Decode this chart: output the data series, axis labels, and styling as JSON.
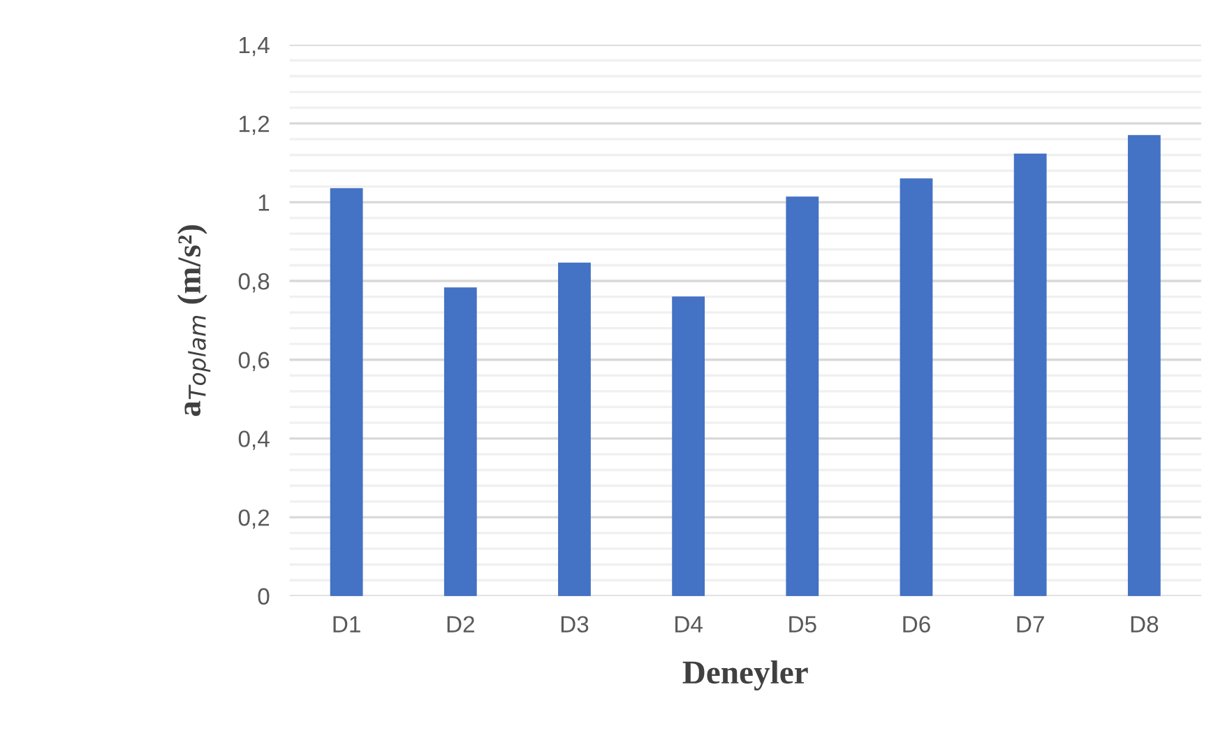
{
  "chart_data": {
    "type": "bar",
    "xlabel": "Deneyler",
    "ylabel": "a$_{Toplam}$ (m/s²)",
    "categories": [
      "D1",
      "D2",
      "D3",
      "D4",
      "D5",
      "D6",
      "D7",
      "D8"
    ],
    "values": [
      1.033,
      0.781,
      0.844,
      0.758,
      1.012,
      1.058,
      1.121,
      1.168
    ],
    "color": "#4472c4",
    "ylim": [
      0,
      1.4
    ],
    "yticks": [
      {
        "value": 0,
        "label": "0"
      },
      {
        "value": 0.2,
        "label": "0,2"
      },
      {
        "value": 0.4,
        "label": "0,4"
      },
      {
        "value": 0.6,
        "label": "0,6"
      },
      {
        "value": 0.8,
        "label": "0,8"
      },
      {
        "value": 1,
        "label": "1"
      },
      {
        "value": 1.2,
        "label": "1,2"
      },
      {
        "value": 1.4,
        "label": "1,4"
      }
    ],
    "grid": "y",
    "legend": false
  }
}
